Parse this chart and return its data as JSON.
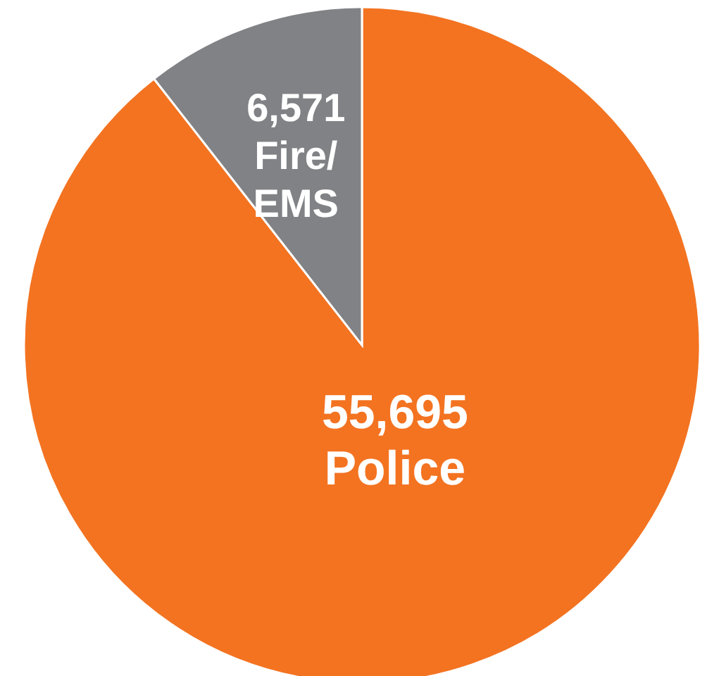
{
  "chart_data": {
    "type": "pie",
    "categories": [
      "Police",
      "Fire/EMS"
    ],
    "values": [
      55695,
      6571
    ],
    "value_labels": [
      "55,695",
      "6,571"
    ],
    "colors": [
      "#f37321",
      "#808285"
    ]
  }
}
